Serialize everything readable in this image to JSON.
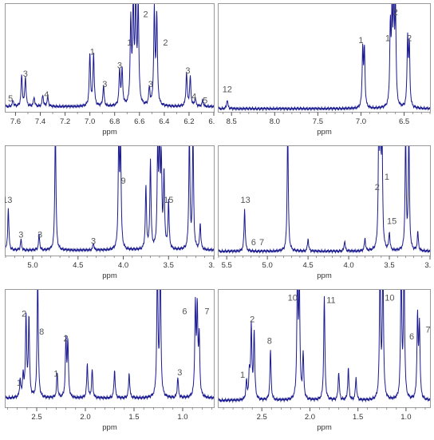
{
  "colors": {
    "trace": "#1b1b8f",
    "axis": "#555555",
    "label": "#555555",
    "frame": "#9a9a9a"
  },
  "chart_data": [
    {
      "type": "line",
      "xlabel": "ppm",
      "xlim": [
        7.68,
        6.0
      ],
      "ticks": [
        7.6,
        7.4,
        7.2,
        7.0,
        6.8,
        6.6,
        6.4,
        6.2,
        6.0
      ],
      "tick_labels": [
        "7.6",
        "7.4",
        "7.2",
        "7.0",
        "6.8",
        "6.6",
        "6.4",
        "6.2",
        "6.0"
      ],
      "baseline": 0.05,
      "peaks": [
        {
          "x": 7.62,
          "y": 0.06
        },
        {
          "x": 7.55,
          "y": 0.3
        },
        {
          "x": 7.52,
          "y": 0.28
        },
        {
          "x": 7.45,
          "y": 0.09
        },
        {
          "x": 7.38,
          "y": 0.11
        },
        {
          "x": 7.34,
          "y": 0.1
        },
        {
          "x": 7.0,
          "y": 0.5
        },
        {
          "x": 6.97,
          "y": 0.5
        },
        {
          "x": 6.89,
          "y": 0.2
        },
        {
          "x": 6.76,
          "y": 0.34
        },
        {
          "x": 6.74,
          "y": 0.34
        },
        {
          "x": 6.67,
          "y": 0.8
        },
        {
          "x": 6.65,
          "y": 0.95
        },
        {
          "x": 6.63,
          "y": 1.0
        },
        {
          "x": 6.61,
          "y": 0.95
        },
        {
          "x": 6.52,
          "y": 0.17
        },
        {
          "x": 6.48,
          "y": 0.9
        },
        {
          "x": 6.46,
          "y": 0.85
        },
        {
          "x": 6.22,
          "y": 0.32
        },
        {
          "x": 6.19,
          "y": 0.28
        },
        {
          "x": 6.15,
          "y": 0.08
        },
        {
          "x": 6.09,
          "y": 0.06
        }
      ],
      "annotations": [
        {
          "x": 7.64,
          "y": 0.1,
          "text": "5"
        },
        {
          "x": 7.52,
          "y": 0.34,
          "text": "3"
        },
        {
          "x": 7.35,
          "y": 0.14,
          "text": "4"
        },
        {
          "x": 6.98,
          "y": 0.55,
          "text": "1"
        },
        {
          "x": 6.88,
          "y": 0.24,
          "text": "3"
        },
        {
          "x": 6.76,
          "y": 0.42,
          "text": "3"
        },
        {
          "x": 6.68,
          "y": 0.64,
          "text": "1"
        },
        {
          "x": 6.55,
          "y": 0.91,
          "text": "2"
        },
        {
          "x": 6.51,
          "y": 0.24,
          "text": "3"
        },
        {
          "x": 6.39,
          "y": 0.64,
          "text": "2"
        },
        {
          "x": 6.21,
          "y": 0.37,
          "text": "3"
        },
        {
          "x": 6.16,
          "y": 0.12,
          "text": "4"
        },
        {
          "x": 6.07,
          "y": 0.08,
          "text": "5"
        }
      ]
    },
    {
      "type": "line",
      "xlabel": "ppm",
      "xlim": [
        8.65,
        6.2
      ],
      "ticks": [
        8.5,
        8.0,
        7.5,
        7.0,
        6.5
      ],
      "tick_labels": [
        "8.5",
        "8.0",
        "7.5",
        "7.0",
        "6.5"
      ],
      "baseline": 0.03,
      "peaks": [
        {
          "x": 8.55,
          "y": 0.09
        },
        {
          "x": 6.98,
          "y": 0.56
        },
        {
          "x": 6.96,
          "y": 0.55
        },
        {
          "x": 6.66,
          "y": 0.75
        },
        {
          "x": 6.64,
          "y": 0.85
        },
        {
          "x": 6.62,
          "y": 0.95
        },
        {
          "x": 6.6,
          "y": 0.9
        },
        {
          "x": 6.46,
          "y": 0.65
        },
        {
          "x": 6.44,
          "y": 0.6
        }
      ],
      "annotations": [
        {
          "x": 8.55,
          "y": 0.19,
          "text": "12"
        },
        {
          "x": 7.0,
          "y": 0.66,
          "text": "1"
        },
        {
          "x": 6.69,
          "y": 0.68,
          "text": "1"
        },
        {
          "x": 6.6,
          "y": 0.93,
          "text": "2"
        },
        {
          "x": 6.44,
          "y": 0.68,
          "text": "2"
        }
      ]
    },
    {
      "type": "line",
      "xlabel": "ppm",
      "xlim": [
        5.3,
        3.0
      ],
      "ticks": [
        5.0,
        4.5,
        4.0,
        3.5,
        3.0
      ],
      "tick_labels": [
        "5.0",
        "4.5",
        "4.0",
        "3.5",
        "3.0"
      ],
      "baseline": 0.05,
      "peaks": [
        {
          "x": 5.27,
          "y": 0.4
        },
        {
          "x": 5.13,
          "y": 0.1
        },
        {
          "x": 4.93,
          "y": 0.15
        },
        {
          "x": 4.75,
          "y": 1.2
        },
        {
          "x": 4.33,
          "y": 0.07
        },
        {
          "x": 4.05,
          "y": 1.05
        },
        {
          "x": 4.03,
          "y": 1.0
        },
        {
          "x": 3.75,
          "y": 0.6
        },
        {
          "x": 3.7,
          "y": 0.85
        },
        {
          "x": 3.62,
          "y": 0.9
        },
        {
          "x": 3.6,
          "y": 1.0
        },
        {
          "x": 3.58,
          "y": 0.8
        },
        {
          "x": 3.55,
          "y": 0.7
        },
        {
          "x": 3.5,
          "y": 0.45
        },
        {
          "x": 3.27,
          "y": 1.1
        },
        {
          "x": 3.23,
          "y": 1.1
        },
        {
          "x": 3.15,
          "y": 0.25
        }
      ],
      "annotations": [
        {
          "x": 5.28,
          "y": 0.5,
          "text": "13"
        },
        {
          "x": 5.13,
          "y": 0.17,
          "text": "3"
        },
        {
          "x": 4.92,
          "y": 0.17,
          "text": "3"
        },
        {
          "x": 4.33,
          "y": 0.11,
          "text": "3"
        },
        {
          "x": 4.0,
          "y": 0.68,
          "text": "9"
        },
        {
          "x": 3.5,
          "y": 0.5,
          "text": "15"
        }
      ]
    },
    {
      "type": "line",
      "xlabel": "ppm",
      "xlim": [
        5.6,
        3.0
      ],
      "ticks": [
        5.5,
        5.0,
        4.5,
        4.0,
        3.5,
        3.0
      ],
      "tick_labels": [
        "5.5",
        "5.0",
        "4.5",
        "4.0",
        "3.5",
        "3.0"
      ],
      "baseline": 0.04,
      "peaks": [
        {
          "x": 5.28,
          "y": 0.4
        },
        {
          "x": 4.75,
          "y": 1.2
        },
        {
          "x": 4.5,
          "y": 0.12
        },
        {
          "x": 4.05,
          "y": 0.1
        },
        {
          "x": 3.8,
          "y": 0.12
        },
        {
          "x": 3.63,
          "y": 1.1
        },
        {
          "x": 3.61,
          "y": 1.1
        },
        {
          "x": 3.59,
          "y": 1.0
        },
        {
          "x": 3.5,
          "y": 0.17
        },
        {
          "x": 3.3,
          "y": 1.1
        },
        {
          "x": 3.26,
          "y": 1.1
        },
        {
          "x": 3.15,
          "y": 0.18
        }
      ],
      "annotations": [
        {
          "x": 5.27,
          "y": 0.5,
          "text": "13"
        },
        {
          "x": 5.17,
          "y": 0.1,
          "text": "6"
        },
        {
          "x": 5.07,
          "y": 0.1,
          "text": "7"
        },
        {
          "x": 3.65,
          "y": 0.62,
          "text": "2"
        },
        {
          "x": 3.53,
          "y": 0.72,
          "text": "1"
        },
        {
          "x": 3.47,
          "y": 0.3,
          "text": "15"
        }
      ]
    },
    {
      "type": "line",
      "xlabel": "ppm",
      "xlim": [
        2.82,
        0.68
      ],
      "ticks": [
        2.5,
        2.0,
        1.5,
        1.0
      ],
      "tick_labels": [
        "2.5",
        "2.0",
        "1.5",
        "1.0"
      ],
      "baseline": 0.08,
      "peaks": [
        {
          "x": 2.67,
          "y": 0.15
        },
        {
          "x": 2.64,
          "y": 0.2
        },
        {
          "x": 2.61,
          "y": 0.72
        },
        {
          "x": 2.58,
          "y": 0.7
        },
        {
          "x": 2.49,
          "y": 1.1
        },
        {
          "x": 2.29,
          "y": 0.22
        },
        {
          "x": 2.2,
          "y": 0.5
        },
        {
          "x": 2.18,
          "y": 0.48
        },
        {
          "x": 1.98,
          "y": 0.3
        },
        {
          "x": 1.93,
          "y": 0.25
        },
        {
          "x": 1.7,
          "y": 0.25
        },
        {
          "x": 1.55,
          "y": 0.22
        },
        {
          "x": 1.26,
          "y": 1.2
        },
        {
          "x": 1.23,
          "y": 1.2
        },
        {
          "x": 1.05,
          "y": 0.18
        },
        {
          "x": 0.87,
          "y": 0.8
        },
        {
          "x": 0.85,
          "y": 0.75
        },
        {
          "x": 0.83,
          "y": 0.5
        }
      ],
      "annotations": [
        {
          "x": 2.68,
          "y": 0.19,
          "text": "1"
        },
        {
          "x": 2.63,
          "y": 0.8,
          "text": "2"
        },
        {
          "x": 2.45,
          "y": 0.64,
          "text": "8"
        },
        {
          "x": 2.3,
          "y": 0.27,
          "text": "1"
        },
        {
          "x": 2.2,
          "y": 0.58,
          "text": "2"
        },
        {
          "x": 1.03,
          "y": 0.28,
          "text": "3"
        },
        {
          "x": 0.98,
          "y": 0.82,
          "text": "6"
        },
        {
          "x": 0.75,
          "y": 0.82,
          "text": "7"
        }
      ]
    },
    {
      "type": "line",
      "xlabel": "ppm",
      "xlim": [
        2.95,
        0.75
      ],
      "ticks": [
        2.5,
        2.0,
        1.5,
        1.0
      ],
      "tick_labels": [
        "2.5",
        "2.0",
        "1.5",
        "1.0"
      ],
      "baseline": 0.06,
      "peaks": [
        {
          "x": 2.66,
          "y": 0.16
        },
        {
          "x": 2.63,
          "y": 0.22
        },
        {
          "x": 2.61,
          "y": 0.64
        },
        {
          "x": 2.58,
          "y": 0.6
        },
        {
          "x": 2.41,
          "y": 0.44
        },
        {
          "x": 2.13,
          "y": 1.05
        },
        {
          "x": 2.11,
          "y": 1.0
        },
        {
          "x": 2.07,
          "y": 0.4
        },
        {
          "x": 1.85,
          "y": 0.92
        },
        {
          "x": 1.7,
          "y": 0.25
        },
        {
          "x": 1.6,
          "y": 0.28
        },
        {
          "x": 1.52,
          "y": 0.2
        },
        {
          "x": 1.27,
          "y": 1.2
        },
        {
          "x": 1.24,
          "y": 1.2
        },
        {
          "x": 1.05,
          "y": 1.2
        },
        {
          "x": 1.02,
          "y": 1.2
        },
        {
          "x": 0.88,
          "y": 0.72
        },
        {
          "x": 0.86,
          "y": 0.65
        }
      ],
      "annotations": [
        {
          "x": 2.7,
          "y": 0.26,
          "text": "1"
        },
        {
          "x": 2.6,
          "y": 0.75,
          "text": "2"
        },
        {
          "x": 2.42,
          "y": 0.56,
          "text": "8"
        },
        {
          "x": 2.18,
          "y": 0.94,
          "text": "10"
        },
        {
          "x": 1.78,
          "y": 0.92,
          "text": "11"
        },
        {
          "x": 1.17,
          "y": 0.94,
          "text": "10"
        },
        {
          "x": 0.94,
          "y": 0.6,
          "text": "6"
        },
        {
          "x": 0.77,
          "y": 0.66,
          "text": "7"
        }
      ]
    }
  ]
}
